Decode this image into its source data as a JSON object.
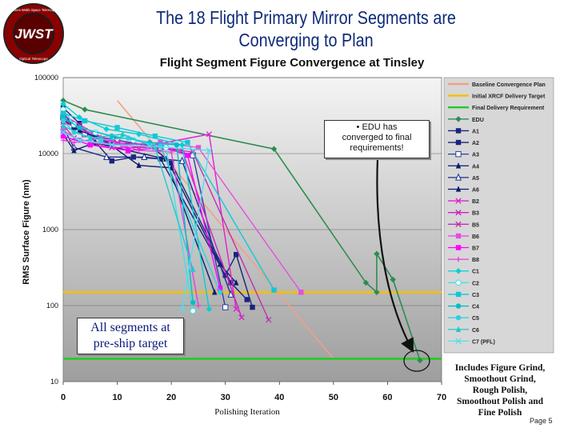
{
  "slide": {
    "title_line1": "The 18 Flight Primary Mirror Segments are",
    "title_line2": "Converging to Plan",
    "page_label": "Page 5",
    "logo_text_main": "JWST",
    "logo_text_top": "James Webb Space Telescope",
    "logo_text_bottom": "Optical Telescope"
  },
  "callouts": {
    "edu_bullet": "•",
    "edu_line1": "EDU has",
    "edu_line2": "converged to final",
    "edu_line3": "requirements!",
    "segments_line1": "All segments at",
    "segments_line2": "pre-ship target",
    "polish_line1": "Includes Figure Grind,",
    "polish_line2": "Smoothout Grind,",
    "polish_line3": "Rough Polish,",
    "polish_line4": "Smoothout Polish and",
    "polish_line5": "Fine Polish"
  },
  "colors": {
    "plot_bg_top": "#f4f4f4",
    "plot_bg_bottom": "#9e9e9e",
    "baseline": "#f0a088",
    "xrcf": "#f5c000",
    "final_req": "#22cc22",
    "edu": "#2e8b50",
    "arrow": "#111111"
  },
  "chart_data": {
    "type": "line",
    "title": "Flight Segment Figure Convergence at Tinsley",
    "xlabel": "Polishing Iteration",
    "ylabel": "RMS Surface Figure (nm)",
    "y_scale": "log",
    "xlim": [
      0,
      70
    ],
    "ylim": [
      10,
      100000
    ],
    "x_ticks": [
      "0",
      "10",
      "20",
      "30",
      "40",
      "50",
      "60",
      "70"
    ],
    "y_ticks": [
      "10",
      "100",
      "1000",
      "10000",
      "100000"
    ],
    "legend_position": "right",
    "reference_lines": [
      {
        "name": "Baseline Convergence Plan",
        "color": "#f0a088",
        "x": [
          10,
          50
        ],
        "y": [
          50000,
          20
        ]
      },
      {
        "name": "Initial XRCF Delivery Target",
        "color": "#f5c000",
        "x": [
          0,
          70
        ],
        "y": [
          150,
          150
        ]
      },
      {
        "name": "Final Delivery Requirement",
        "color": "#22cc22",
        "x": [
          0,
          70
        ],
        "y": [
          20,
          20
        ]
      }
    ],
    "series": [
      {
        "name": "EDU",
        "color": "#2e8b50",
        "marker": "diamond",
        "x": [
          0,
          4,
          39,
          56,
          58,
          58,
          61,
          66
        ],
        "y": [
          50000,
          38000,
          11500,
          200,
          150,
          480,
          220,
          19
        ]
      },
      {
        "name": "A1",
        "color": "#1a237e",
        "marker": "square",
        "x": [
          0,
          3,
          9,
          13,
          18,
          30,
          32,
          35
        ],
        "y": [
          40000,
          25000,
          8000,
          9000,
          8500,
          250,
          470,
          95
        ]
      },
      {
        "name": "A2",
        "color": "#1a237e",
        "marker": "square",
        "x": [
          0,
          2,
          8,
          16,
          20,
          31,
          34
        ],
        "y": [
          35000,
          22000,
          14000,
          13000,
          7500,
          200,
          120
        ]
      },
      {
        "name": "A3",
        "color": "#303f9f",
        "marker": "square-open",
        "x": [
          0,
          4,
          10,
          18,
          24,
          30
        ],
        "y": [
          30000,
          18000,
          15000,
          12000,
          9500,
          95
        ]
      },
      {
        "name": "A4",
        "color": "#0d1b6e",
        "marker": "triangle",
        "x": [
          0,
          3,
          7,
          14,
          20,
          29,
          32
        ],
        "y": [
          28000,
          20000,
          16000,
          7000,
          6500,
          350,
          200
        ]
      },
      {
        "name": "A5",
        "color": "#1f2f90",
        "marker": "triangle-open",
        "x": [
          0,
          2,
          8,
          15,
          22,
          31
        ],
        "y": [
          22000,
          12000,
          9000,
          9000,
          8000,
          140
        ]
      },
      {
        "name": "A6",
        "color": "#0d1b6e",
        "marker": "triangle",
        "x": [
          0,
          2,
          6,
          12,
          19,
          28
        ],
        "y": [
          18000,
          11000,
          14000,
          11000,
          8500,
          150
        ]
      },
      {
        "name": "B2",
        "color": "#e020d0",
        "marker": "x",
        "x": [
          0,
          3,
          8,
          14,
          27,
          32
        ],
        "y": [
          32000,
          24000,
          15000,
          12000,
          18000,
          90
        ]
      },
      {
        "name": "B3",
        "color": "#d020c0",
        "marker": "x",
        "x": [
          0,
          4,
          10,
          16,
          22,
          33
        ],
        "y": [
          26000,
          20000,
          14000,
          13000,
          11000,
          70
        ]
      },
      {
        "name": "B5",
        "color": "#c030b0",
        "marker": "x",
        "x": [
          0,
          2,
          9,
          17,
          24,
          38
        ],
        "y": [
          24000,
          16000,
          12000,
          12000,
          10500,
          65
        ]
      },
      {
        "name": "B6",
        "color": "#e050e0",
        "marker": "square",
        "x": [
          0,
          3,
          11,
          18,
          25,
          44
        ],
        "y": [
          20000,
          15000,
          13000,
          14000,
          12000,
          150
        ]
      },
      {
        "name": "B7",
        "color": "#ff00ff",
        "marker": "square",
        "x": [
          0,
          5,
          12,
          19,
          23,
          29
        ],
        "y": [
          17000,
          13000,
          11000,
          12000,
          9500,
          170
        ]
      },
      {
        "name": "B8",
        "color": "#e040e0",
        "marker": "plus",
        "x": [
          0,
          2,
          7,
          14,
          20,
          25
        ],
        "y": [
          15000,
          14000,
          16000,
          11000,
          10500,
          100
        ]
      },
      {
        "name": "C1",
        "color": "#00d0d8",
        "marker": "diamond",
        "x": [
          0,
          3,
          8,
          14,
          22,
          27
        ],
        "y": [
          45000,
          30000,
          21000,
          18000,
          13000,
          90
        ]
      },
      {
        "name": "C2",
        "color": "#40e0e8",
        "marker": "circle-open",
        "x": [
          0,
          2,
          6,
          13,
          19,
          24
        ],
        "y": [
          38000,
          24000,
          19000,
          15000,
          12000,
          85
        ]
      },
      {
        "name": "C3",
        "color": "#10c8d8",
        "marker": "square",
        "x": [
          0,
          4,
          10,
          17,
          23,
          39
        ],
        "y": [
          34000,
          27000,
          22000,
          17000,
          14000,
          160
        ]
      },
      {
        "name": "C4",
        "color": "#00c0c8",
        "marker": "circle",
        "x": [
          0,
          3,
          9,
          16,
          21,
          24
        ],
        "y": [
          30000,
          22000,
          17000,
          14000,
          13000,
          110
        ]
      },
      {
        "name": "C5",
        "color": "#30d0e0",
        "marker": "circle",
        "x": [
          0,
          2,
          7,
          12,
          18,
          29
        ],
        "y": [
          27000,
          19000,
          15000,
          16000,
          12500,
          150
        ]
      },
      {
        "name": "C6",
        "color": "#20c8d0",
        "marker": "triangle",
        "x": [
          0,
          5,
          11,
          17,
          24
        ],
        "y": [
          23000,
          16000,
          18000,
          12000,
          300
        ]
      },
      {
        "name": "C7 (PFL)",
        "color": "#50e0f0",
        "marker": "x",
        "x": [
          0,
          3,
          9,
          16,
          27,
          22
        ],
        "y": [
          19000,
          15000,
          13000,
          12500,
          11000,
          90
        ]
      }
    ]
  }
}
